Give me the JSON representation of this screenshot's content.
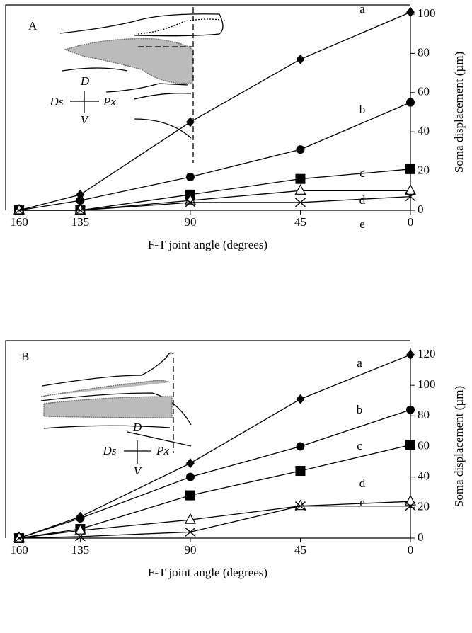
{
  "chart_data": [
    {
      "type": "line",
      "panel": "A",
      "x_label": "F-T joint angle (degrees)",
      "y_label": "Soma displacement (µm)",
      "x": [
        160,
        135,
        90,
        45,
        0
      ],
      "xlim": [
        160,
        0
      ],
      "xticks": [
        160,
        135,
        90,
        45,
        0
      ],
      "ylim": [
        0,
        100
      ],
      "yticks": [
        0,
        20,
        40,
        60,
        80,
        100
      ],
      "inset_labels": [
        "D",
        "V",
        "Ds",
        "Px"
      ],
      "series": [
        {
          "name": "a",
          "color": "#000000",
          "marker": "diamond",
          "values": [
            0,
            8,
            45,
            77,
            101
          ]
        },
        {
          "name": "b",
          "color": "#000000",
          "marker": "circle",
          "values": [
            0,
            5,
            17,
            31,
            55
          ]
        },
        {
          "name": "c",
          "color": "#000000",
          "marker": "square",
          "values": [
            0,
            0,
            8,
            16,
            21
          ]
        },
        {
          "name": "d",
          "color": "#000000",
          "marker": "triangle",
          "values": [
            0,
            0,
            5,
            10,
            10
          ]
        },
        {
          "name": "e",
          "color": "#000000",
          "marker": "x",
          "values": [
            0,
            0,
            4,
            4,
            7
          ]
        }
      ]
    },
    {
      "type": "line",
      "panel": "B",
      "x_label": "F-T joint angle (degrees)",
      "y_label": "Soma displacement (µm)",
      "x": [
        160,
        135,
        90,
        45,
        0
      ],
      "xlim": [
        160,
        0
      ],
      "xticks": [
        160,
        135,
        90,
        45,
        0
      ],
      "ylim": [
        0,
        120
      ],
      "yticks": [
        0,
        20,
        40,
        60,
        80,
        100,
        120
      ],
      "inset_labels": [
        "D",
        "V",
        "Ds",
        "Px"
      ],
      "series": [
        {
          "name": "a",
          "color": "#000000",
          "marker": "diamond",
          "values": [
            0,
            14,
            49,
            91,
            120
          ]
        },
        {
          "name": "b",
          "color": "#000000",
          "marker": "circle",
          "values": [
            0,
            13,
            40,
            60,
            84
          ]
        },
        {
          "name": "c",
          "color": "#000000",
          "marker": "square",
          "values": [
            0,
            6,
            28,
            44,
            61
          ]
        },
        {
          "name": "d",
          "color": "#000000",
          "marker": "triangle",
          "values": [
            0,
            5,
            12,
            21,
            24
          ]
        },
        {
          "name": "e",
          "color": "#000000",
          "marker": "x",
          "values": [
            0,
            1,
            4,
            21,
            21
          ]
        }
      ]
    }
  ]
}
